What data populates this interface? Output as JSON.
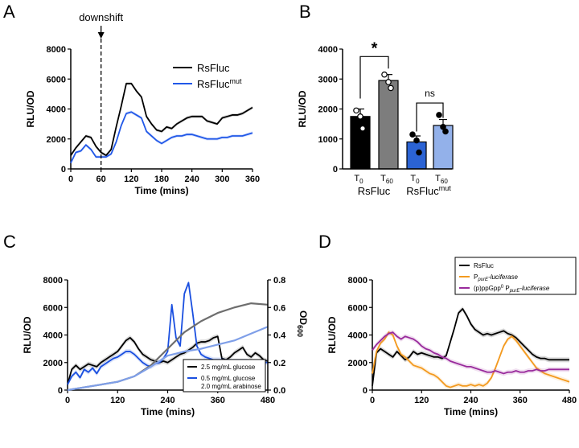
{
  "chart_data": [
    {
      "panel": "A",
      "type": "line",
      "xlabel": "Time (mins)",
      "ylabel": "RLU/OD",
      "xlim": [
        0,
        360
      ],
      "ylim": [
        0,
        8000
      ],
      "xticks": [
        0,
        60,
        120,
        180,
        240,
        300,
        360
      ],
      "yticks": [
        0,
        2000,
        4000,
        6000,
        8000
      ],
      "annotation": "downshift",
      "annotation_x": 60,
      "legend_position": "top-right",
      "series": [
        {
          "name": "RsFluc",
          "color": "#000000",
          "x": [
            0,
            10,
            20,
            30,
            40,
            50,
            60,
            70,
            80,
            90,
            100,
            110,
            120,
            130,
            140,
            150,
            160,
            170,
            180,
            190,
            200,
            210,
            220,
            230,
            240,
            250,
            260,
            270,
            280,
            290,
            300,
            310,
            320,
            330,
            340,
            350,
            360
          ],
          "y": [
            900,
            1400,
            1800,
            2200,
            2100,
            1500,
            1100,
            900,
            1300,
            2800,
            4200,
            5700,
            5700,
            5200,
            4800,
            3500,
            3000,
            2600,
            2500,
            2800,
            2700,
            3000,
            3200,
            3400,
            3500,
            3500,
            3500,
            3200,
            3100,
            3000,
            3400,
            3500,
            3600,
            3600,
            3700,
            3900,
            4100
          ]
        },
        {
          "name": "RsFluc",
          "name_sup": "mut",
          "color": "#2158e8",
          "x": [
            0,
            10,
            20,
            30,
            40,
            50,
            60,
            70,
            80,
            90,
            100,
            110,
            120,
            130,
            140,
            150,
            160,
            170,
            180,
            190,
            200,
            210,
            220,
            230,
            240,
            250,
            260,
            270,
            280,
            290,
            300,
            310,
            320,
            330,
            340,
            350,
            360
          ],
          "y": [
            400,
            1100,
            1200,
            1600,
            1300,
            800,
            800,
            800,
            1000,
            1800,
            2900,
            3700,
            3800,
            3600,
            3400,
            2500,
            2200,
            1900,
            1700,
            1900,
            2100,
            2200,
            2200,
            2300,
            2300,
            2200,
            2100,
            2000,
            2000,
            2000,
            2100,
            2100,
            2200,
            2200,
            2200,
            2300,
            2400
          ]
        }
      ]
    },
    {
      "panel": "B",
      "type": "bar",
      "ylabel": "RLU/OD",
      "ylim": [
        0,
        4000
      ],
      "yticks": [
        0,
        1000,
        2000,
        3000,
        4000
      ],
      "categories": [
        "T",
        "T",
        "T",
        "T"
      ],
      "category_subscripts": [
        "0",
        "60",
        "0",
        "60"
      ],
      "groups": [
        {
          "label": "RsFluc",
          "label_sup": ""
        },
        {
          "label": "RsFluc",
          "label_sup": "mut"
        }
      ],
      "values": [
        1750,
        2950,
        900,
        1450
      ],
      "errors": [
        250,
        200,
        200,
        200
      ],
      "points": [
        [
          1950,
          1750,
          1350
        ],
        [
          3150,
          2900,
          2700
        ],
        [
          1150,
          950,
          550
        ],
        [
          1800,
          1400,
          1250
        ]
      ],
      "colors": [
        "#000000",
        "#7d7d7d",
        "#2b63d4",
        "#93b1ea"
      ],
      "significance": [
        "*",
        "ns"
      ]
    },
    {
      "panel": "C",
      "type": "line",
      "xlabel": "Time (mins)",
      "ylabel": "RLU/OD",
      "y2label": "OD",
      "y2label_sub": "600",
      "xlim": [
        0,
        480
      ],
      "ylim": [
        0,
        8000
      ],
      "y2lim": [
        0,
        0.8
      ],
      "xticks": [
        0,
        120,
        240,
        360,
        480
      ],
      "yticks": [
        0,
        2000,
        4000,
        6000,
        8000
      ],
      "y2ticks": [
        "0.0",
        "0.2",
        "0.4",
        "0.6",
        "0.8"
      ],
      "legend_position": "bottom-right",
      "legend": [
        "2.5 mg/mL glucose",
        "0.5 mg/mL glucose",
        "2.0 mg/mL arabinose"
      ],
      "series": [
        {
          "name": "2.5 mg/mL glucose",
          "color": "#000000",
          "x": [
            0,
            10,
            20,
            30,
            40,
            50,
            60,
            70,
            80,
            90,
            100,
            110,
            120,
            130,
            140,
            150,
            160,
            170,
            180,
            190,
            200,
            210,
            220,
            230,
            240,
            250,
            260,
            270,
            280,
            290,
            300,
            310,
            320,
            330,
            340,
            350,
            360,
            370,
            380,
            390,
            400,
            410,
            420,
            430,
            440,
            450,
            460,
            470,
            480
          ],
          "y": [
            400,
            1500,
            1800,
            1500,
            1700,
            1900,
            1800,
            1700,
            2000,
            2200,
            2400,
            2600,
            2800,
            3200,
            3600,
            3800,
            3500,
            3000,
            2600,
            2400,
            2200,
            2100,
            2000,
            2100,
            2000,
            2200,
            2400,
            2600,
            2700,
            2900,
            3100,
            3400,
            3500,
            3500,
            3600,
            3800,
            3900,
            2300,
            2200,
            2400,
            2700,
            2900,
            3100,
            2600,
            2400,
            2700,
            2500,
            2200,
            2100
          ]
        },
        {
          "name": "0.5 mg/mL glucose",
          "color": "#1a4fe0",
          "x": [
            0,
            10,
            20,
            30,
            40,
            50,
            60,
            70,
            80,
            90,
            100,
            110,
            120,
            130,
            140,
            150,
            160,
            170,
            180,
            190,
            200,
            210,
            220,
            230,
            240,
            250,
            260,
            270,
            280,
            290,
            300,
            310,
            320,
            330,
            340,
            350,
            360,
            370,
            380,
            390,
            400,
            410,
            420,
            430,
            440,
            450,
            460,
            470,
            480
          ],
          "y": [
            400,
            1000,
            1300,
            900,
            1500,
            1300,
            1600,
            1200,
            1700,
            1900,
            2100,
            2300,
            2400,
            2600,
            2800,
            2800,
            2600,
            2300,
            2000,
            1800,
            1700,
            1900,
            2000,
            2300,
            2800,
            6200,
            3800,
            3200,
            7000,
            7800,
            5600,
            3200,
            2600,
            2400,
            2300,
            2200,
            2200,
            2200,
            2100,
            2100,
            2100,
            2100,
            2100,
            2100,
            2000,
            2000,
            2000,
            2000,
            2000
          ]
        },
        {
          "name": "OD600 2.5 mg/mL glucose",
          "color": "#6e6e6e",
          "axis": "right",
          "x": [
            0,
            40,
            80,
            120,
            160,
            200,
            240,
            280,
            320,
            360,
            400,
            440,
            480
          ],
          "y": [
            0.0,
            0.02,
            0.04,
            0.06,
            0.1,
            0.18,
            0.3,
            0.42,
            0.5,
            0.56,
            0.6,
            0.63,
            0.62
          ]
        },
        {
          "name": "OD600 0.5 mg/mL glucose",
          "color": "#7f9fe8",
          "axis": "right",
          "x": [
            0,
            40,
            80,
            120,
            160,
            200,
            240,
            280,
            320,
            360,
            400,
            440,
            480
          ],
          "y": [
            0.0,
            0.02,
            0.04,
            0.06,
            0.1,
            0.17,
            0.25,
            0.28,
            0.3,
            0.33,
            0.36,
            0.41,
            0.46
          ]
        }
      ]
    },
    {
      "panel": "D",
      "type": "line",
      "xlabel": "Time (mins)",
      "ylabel": "RLU/OD",
      "xlim": [
        0,
        480
      ],
      "ylim": [
        0,
        8000
      ],
      "xticks": [
        0,
        120,
        240,
        360,
        480
      ],
      "yticks": [
        0,
        2000,
        4000,
        6000,
        8000
      ],
      "legend_position": "top-right",
      "series": [
        {
          "name": "RsFluc",
          "color": "#000000",
          "x": [
            0,
            10,
            20,
            30,
            40,
            50,
            60,
            70,
            80,
            90,
            100,
            110,
            120,
            130,
            140,
            150,
            160,
            170,
            180,
            190,
            200,
            210,
            220,
            230,
            240,
            250,
            260,
            270,
            280,
            290,
            300,
            310,
            320,
            330,
            340,
            350,
            360,
            370,
            380,
            390,
            400,
            410,
            420,
            430,
            440,
            450,
            460,
            470,
            480
          ],
          "y": [
            300,
            2700,
            3000,
            2800,
            2600,
            2400,
            2800,
            2500,
            2200,
            2400,
            2800,
            2600,
            2700,
            2600,
            2500,
            2400,
            2400,
            2300,
            2500,
            3500,
            4500,
            5600,
            5900,
            5400,
            4800,
            4400,
            4200,
            4000,
            4100,
            4000,
            4100,
            4200,
            4300,
            4100,
            4000,
            3800,
            3500,
            3200,
            2900,
            2600,
            2400,
            2300,
            2300,
            2200,
            2200,
            2200,
            2200,
            2200,
            2200
          ]
        },
        {
          "name": "P",
          "name_sub": "purE",
          "name_suffix": "-luciferase",
          "color": "#f39a1f",
          "x": [
            0,
            10,
            20,
            30,
            40,
            50,
            60,
            70,
            80,
            90,
            100,
            110,
            120,
            130,
            140,
            150,
            160,
            170,
            180,
            190,
            200,
            210,
            220,
            230,
            240,
            250,
            260,
            270,
            280,
            290,
            300,
            310,
            320,
            330,
            340,
            350,
            360,
            370,
            380,
            390,
            400,
            410,
            420,
            430,
            440,
            450,
            460,
            470,
            480
          ],
          "y": [
            1200,
            2800,
            3400,
            3700,
            4200,
            4000,
            3200,
            2600,
            2400,
            2100,
            1800,
            1700,
            1600,
            1400,
            1200,
            1100,
            900,
            600,
            300,
            200,
            300,
            400,
            300,
            300,
            400,
            300,
            400,
            300,
            500,
            900,
            1600,
            2400,
            3200,
            3700,
            3900,
            3600,
            3200,
            2800,
            2400,
            2000,
            1600,
            1400,
            1200,
            1100,
            1000,
            900,
            800,
            700,
            600
          ]
        },
        {
          "name": "(p)ppGpp",
          "name_sup": "0",
          "name_mid": " P",
          "name_sub": "purE",
          "name_suffix": "-luciferase",
          "color": "#992a9c",
          "x": [
            0,
            10,
            20,
            30,
            40,
            50,
            60,
            70,
            80,
            90,
            100,
            110,
            120,
            130,
            140,
            150,
            160,
            170,
            180,
            190,
            200,
            210,
            220,
            230,
            240,
            250,
            260,
            270,
            280,
            290,
            300,
            310,
            320,
            330,
            340,
            350,
            360,
            370,
            380,
            390,
            400,
            410,
            420,
            430,
            440,
            450,
            460,
            470,
            480
          ],
          "y": [
            2900,
            3300,
            3600,
            3900,
            4100,
            4200,
            3900,
            3700,
            3900,
            3800,
            3700,
            3500,
            3200,
            3000,
            2900,
            2700,
            2600,
            2400,
            2300,
            2100,
            2000,
            1900,
            1800,
            1700,
            1700,
            1600,
            1500,
            1400,
            1300,
            1300,
            1400,
            1300,
            1200,
            1300,
            1300,
            1400,
            1300,
            1300,
            1400,
            1400,
            1500,
            1400,
            1400,
            1500,
            1500,
            1500,
            1500,
            1500,
            1500
          ]
        }
      ]
    }
  ]
}
